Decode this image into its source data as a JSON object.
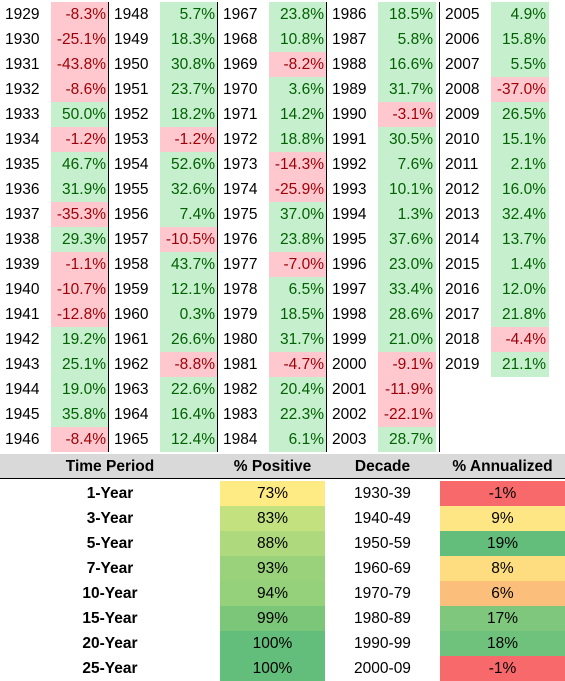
{
  "annual_returns": [
    [
      {
        "year": "1929",
        "value": "-8.3%"
      },
      {
        "year": "1930",
        "value": "-25.1%"
      },
      {
        "year": "1931",
        "value": "-43.8%"
      },
      {
        "year": "1932",
        "value": "-8.6%"
      },
      {
        "year": "1933",
        "value": "50.0%"
      },
      {
        "year": "1934",
        "value": "-1.2%"
      },
      {
        "year": "1935",
        "value": "46.7%"
      },
      {
        "year": "1936",
        "value": "31.9%"
      },
      {
        "year": "1937",
        "value": "-35.3%"
      },
      {
        "year": "1938",
        "value": "29.3%"
      },
      {
        "year": "1939",
        "value": "-1.1%"
      },
      {
        "year": "1940",
        "value": "-10.7%"
      },
      {
        "year": "1941",
        "value": "-12.8%"
      },
      {
        "year": "1942",
        "value": "19.2%"
      },
      {
        "year": "1943",
        "value": "25.1%"
      },
      {
        "year": "1944",
        "value": "19.0%"
      },
      {
        "year": "1945",
        "value": "35.8%"
      },
      {
        "year": "1946",
        "value": "-8.4%"
      }
    ],
    [
      {
        "year": "1948",
        "value": "5.7%"
      },
      {
        "year": "1949",
        "value": "18.3%"
      },
      {
        "year": "1950",
        "value": "30.8%"
      },
      {
        "year": "1951",
        "value": "23.7%"
      },
      {
        "year": "1952",
        "value": "18.2%"
      },
      {
        "year": "1953",
        "value": "-1.2%"
      },
      {
        "year": "1954",
        "value": "52.6%"
      },
      {
        "year": "1955",
        "value": "32.6%"
      },
      {
        "year": "1956",
        "value": "7.4%"
      },
      {
        "year": "1957",
        "value": "-10.5%"
      },
      {
        "year": "1958",
        "value": "43.7%"
      },
      {
        "year": "1959",
        "value": "12.1%"
      },
      {
        "year": "1960",
        "value": "0.3%"
      },
      {
        "year": "1961",
        "value": "26.6%"
      },
      {
        "year": "1962",
        "value": "-8.8%"
      },
      {
        "year": "1963",
        "value": "22.6%"
      },
      {
        "year": "1964",
        "value": "16.4%"
      },
      {
        "year": "1965",
        "value": "12.4%"
      }
    ],
    [
      {
        "year": "1967",
        "value": "23.8%"
      },
      {
        "year": "1968",
        "value": "10.8%"
      },
      {
        "year": "1969",
        "value": "-8.2%"
      },
      {
        "year": "1970",
        "value": "3.6%"
      },
      {
        "year": "1971",
        "value": "14.2%"
      },
      {
        "year": "1972",
        "value": "18.8%"
      },
      {
        "year": "1973",
        "value": "-14.3%"
      },
      {
        "year": "1974",
        "value": "-25.9%"
      },
      {
        "year": "1975",
        "value": "37.0%"
      },
      {
        "year": "1976",
        "value": "23.8%"
      },
      {
        "year": "1977",
        "value": "-7.0%"
      },
      {
        "year": "1978",
        "value": "6.5%"
      },
      {
        "year": "1979",
        "value": "18.5%"
      },
      {
        "year": "1980",
        "value": "31.7%"
      },
      {
        "year": "1981",
        "value": "-4.7%"
      },
      {
        "year": "1982",
        "value": "20.4%"
      },
      {
        "year": "1983",
        "value": "22.3%"
      },
      {
        "year": "1984",
        "value": "6.1%"
      }
    ],
    [
      {
        "year": "1986",
        "value": "18.5%"
      },
      {
        "year": "1987",
        "value": "5.8%"
      },
      {
        "year": "1988",
        "value": "16.6%"
      },
      {
        "year": "1989",
        "value": "31.7%"
      },
      {
        "year": "1990",
        "value": "-3.1%"
      },
      {
        "year": "1991",
        "value": "30.5%"
      },
      {
        "year": "1992",
        "value": "7.6%"
      },
      {
        "year": "1993",
        "value": "10.1%"
      },
      {
        "year": "1994",
        "value": "1.3%"
      },
      {
        "year": "1995",
        "value": "37.6%"
      },
      {
        "year": "1996",
        "value": "23.0%"
      },
      {
        "year": "1997",
        "value": "33.4%"
      },
      {
        "year": "1998",
        "value": "28.6%"
      },
      {
        "year": "1999",
        "value": "21.0%"
      },
      {
        "year": "2000",
        "value": "-9.1%"
      },
      {
        "year": "2001",
        "value": "-11.9%"
      },
      {
        "year": "2002",
        "value": "-22.1%"
      },
      {
        "year": "2003",
        "value": "28.7%"
      }
    ],
    [
      {
        "year": "2005",
        "value": "4.9%"
      },
      {
        "year": "2006",
        "value": "15.8%"
      },
      {
        "year": "2007",
        "value": "5.5%"
      },
      {
        "year": "2008",
        "value": "-37.0%"
      },
      {
        "year": "2009",
        "value": "26.5%"
      },
      {
        "year": "2010",
        "value": "15.1%"
      },
      {
        "year": "2011",
        "value": "2.1%"
      },
      {
        "year": "2012",
        "value": "16.0%"
      },
      {
        "year": "2013",
        "value": "32.4%"
      },
      {
        "year": "2014",
        "value": "13.7%"
      },
      {
        "year": "2015",
        "value": "1.4%"
      },
      {
        "year": "2016",
        "value": "12.0%"
      },
      {
        "year": "2017",
        "value": "21.8%"
      },
      {
        "year": "2018",
        "value": "-4.4%"
      },
      {
        "year": "2019",
        "value": "21.1%"
      }
    ]
  ],
  "summary": {
    "headers": {
      "time_period": "Time Period",
      "positive": "% Positive",
      "decade": "Decade",
      "annualized": "% Annualized"
    },
    "time_periods": [
      {
        "label": "1-Year",
        "value": "73%",
        "color": "#ffeb84"
      },
      {
        "label": "3-Year",
        "value": "83%",
        "color": "#c4e17f"
      },
      {
        "label": "5-Year",
        "value": "88%",
        "color": "#afd97d"
      },
      {
        "label": "7-Year",
        "value": "93%",
        "color": "#9ad27b"
      },
      {
        "label": "10-Year",
        "value": "94%",
        "color": "#95d07b"
      },
      {
        "label": "15-Year",
        "value": "99%",
        "color": "#7cc679"
      },
      {
        "label": "20-Year",
        "value": "100%",
        "color": "#63be7b"
      },
      {
        "label": "25-Year",
        "value": "100%",
        "color": "#63be7b"
      }
    ],
    "decades": [
      {
        "label": "1930-39",
        "value": "-1%",
        "color": "#f8696b"
      },
      {
        "label": "1940-49",
        "value": "9%",
        "color": "#ffe684"
      },
      {
        "label": "1950-59",
        "value": "19%",
        "color": "#63be7b"
      },
      {
        "label": "1960-69",
        "value": "8%",
        "color": "#fedd81"
      },
      {
        "label": "1970-79",
        "value": "6%",
        "color": "#fcbf7b"
      },
      {
        "label": "1980-89",
        "value": "17%",
        "color": "#7fc77d"
      },
      {
        "label": "1990-99",
        "value": "18%",
        "color": "#6fc27c"
      },
      {
        "label": "2000-09",
        "value": "-1%",
        "color": "#f8696b"
      }
    ]
  }
}
